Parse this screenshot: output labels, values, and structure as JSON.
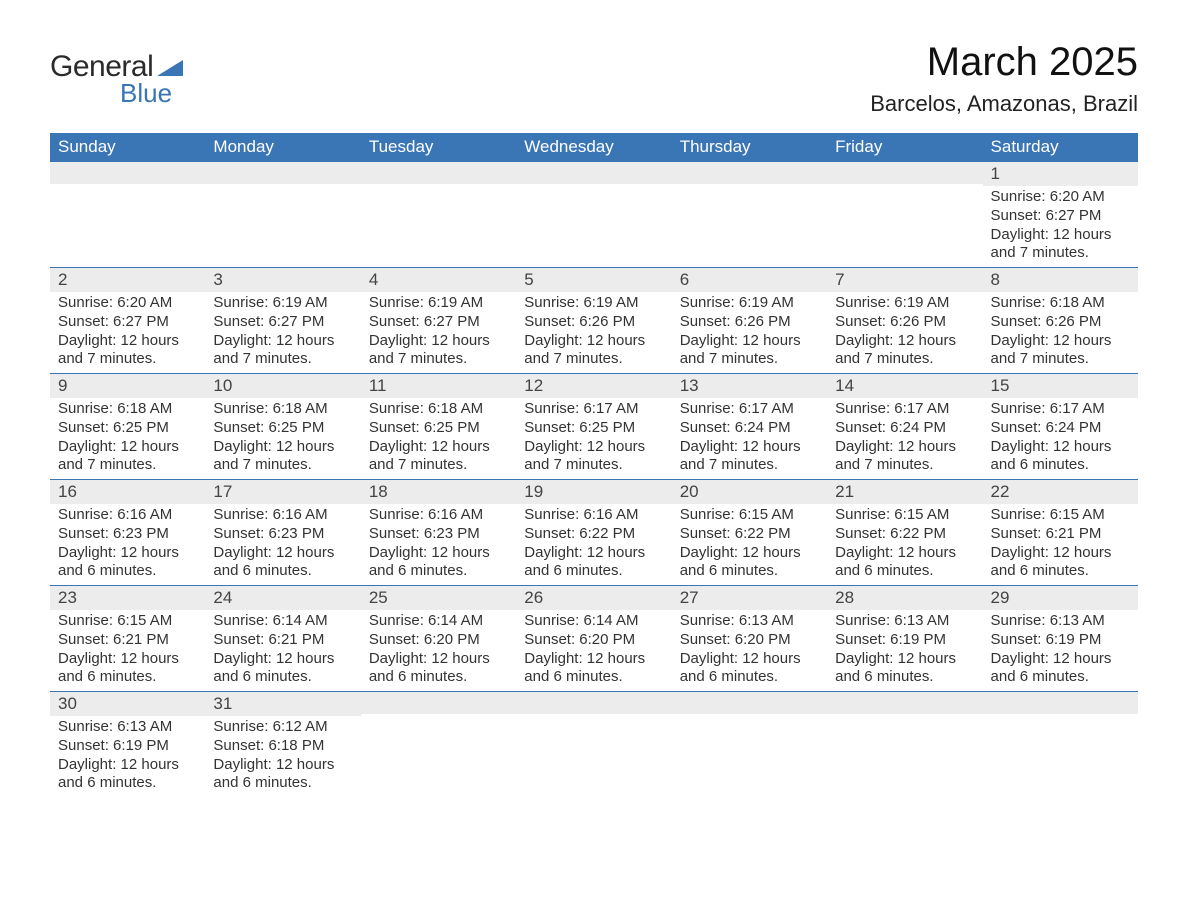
{
  "brand": {
    "word1": "General",
    "word2": "Blue",
    "shape_color": "#3a75b5"
  },
  "header": {
    "title": "March 2025",
    "location": "Barcelos, Amazonas, Brazil"
  },
  "colors": {
    "header_bg": "#3a75b5",
    "header_fg": "#ffffff",
    "row_sep": "#3a75b5",
    "daynum_bg": "#ececec"
  },
  "day_labels": [
    "Sunday",
    "Monday",
    "Tuesday",
    "Wednesday",
    "Thursday",
    "Friday",
    "Saturday"
  ],
  "weeks": [
    [
      {
        "n": "",
        "lines": []
      },
      {
        "n": "",
        "lines": []
      },
      {
        "n": "",
        "lines": []
      },
      {
        "n": "",
        "lines": []
      },
      {
        "n": "",
        "lines": []
      },
      {
        "n": "",
        "lines": []
      },
      {
        "n": "1",
        "lines": [
          "Sunrise: 6:20 AM",
          "Sunset: 6:27 PM",
          "Daylight: 12 hours and 7 minutes."
        ]
      }
    ],
    [
      {
        "n": "2",
        "lines": [
          "Sunrise: 6:20 AM",
          "Sunset: 6:27 PM",
          "Daylight: 12 hours and 7 minutes."
        ]
      },
      {
        "n": "3",
        "lines": [
          "Sunrise: 6:19 AM",
          "Sunset: 6:27 PM",
          "Daylight: 12 hours and 7 minutes."
        ]
      },
      {
        "n": "4",
        "lines": [
          "Sunrise: 6:19 AM",
          "Sunset: 6:27 PM",
          "Daylight: 12 hours and 7 minutes."
        ]
      },
      {
        "n": "5",
        "lines": [
          "Sunrise: 6:19 AM",
          "Sunset: 6:26 PM",
          "Daylight: 12 hours and 7 minutes."
        ]
      },
      {
        "n": "6",
        "lines": [
          "Sunrise: 6:19 AM",
          "Sunset: 6:26 PM",
          "Daylight: 12 hours and 7 minutes."
        ]
      },
      {
        "n": "7",
        "lines": [
          "Sunrise: 6:19 AM",
          "Sunset: 6:26 PM",
          "Daylight: 12 hours and 7 minutes."
        ]
      },
      {
        "n": "8",
        "lines": [
          "Sunrise: 6:18 AM",
          "Sunset: 6:26 PM",
          "Daylight: 12 hours and 7 minutes."
        ]
      }
    ],
    [
      {
        "n": "9",
        "lines": [
          "Sunrise: 6:18 AM",
          "Sunset: 6:25 PM",
          "Daylight: 12 hours and 7 minutes."
        ]
      },
      {
        "n": "10",
        "lines": [
          "Sunrise: 6:18 AM",
          "Sunset: 6:25 PM",
          "Daylight: 12 hours and 7 minutes."
        ]
      },
      {
        "n": "11",
        "lines": [
          "Sunrise: 6:18 AM",
          "Sunset: 6:25 PM",
          "Daylight: 12 hours and 7 minutes."
        ]
      },
      {
        "n": "12",
        "lines": [
          "Sunrise: 6:17 AM",
          "Sunset: 6:25 PM",
          "Daylight: 12 hours and 7 minutes."
        ]
      },
      {
        "n": "13",
        "lines": [
          "Sunrise: 6:17 AM",
          "Sunset: 6:24 PM",
          "Daylight: 12 hours and 7 minutes."
        ]
      },
      {
        "n": "14",
        "lines": [
          "Sunrise: 6:17 AM",
          "Sunset: 6:24 PM",
          "Daylight: 12 hours and 7 minutes."
        ]
      },
      {
        "n": "15",
        "lines": [
          "Sunrise: 6:17 AM",
          "Sunset: 6:24 PM",
          "Daylight: 12 hours and 6 minutes."
        ]
      }
    ],
    [
      {
        "n": "16",
        "lines": [
          "Sunrise: 6:16 AM",
          "Sunset: 6:23 PM",
          "Daylight: 12 hours and 6 minutes."
        ]
      },
      {
        "n": "17",
        "lines": [
          "Sunrise: 6:16 AM",
          "Sunset: 6:23 PM",
          "Daylight: 12 hours and 6 minutes."
        ]
      },
      {
        "n": "18",
        "lines": [
          "Sunrise: 6:16 AM",
          "Sunset: 6:23 PM",
          "Daylight: 12 hours and 6 minutes."
        ]
      },
      {
        "n": "19",
        "lines": [
          "Sunrise: 6:16 AM",
          "Sunset: 6:22 PM",
          "Daylight: 12 hours and 6 minutes."
        ]
      },
      {
        "n": "20",
        "lines": [
          "Sunrise: 6:15 AM",
          "Sunset: 6:22 PM",
          "Daylight: 12 hours and 6 minutes."
        ]
      },
      {
        "n": "21",
        "lines": [
          "Sunrise: 6:15 AM",
          "Sunset: 6:22 PM",
          "Daylight: 12 hours and 6 minutes."
        ]
      },
      {
        "n": "22",
        "lines": [
          "Sunrise: 6:15 AM",
          "Sunset: 6:21 PM",
          "Daylight: 12 hours and 6 minutes."
        ]
      }
    ],
    [
      {
        "n": "23",
        "lines": [
          "Sunrise: 6:15 AM",
          "Sunset: 6:21 PM",
          "Daylight: 12 hours and 6 minutes."
        ]
      },
      {
        "n": "24",
        "lines": [
          "Sunrise: 6:14 AM",
          "Sunset: 6:21 PM",
          "Daylight: 12 hours and 6 minutes."
        ]
      },
      {
        "n": "25",
        "lines": [
          "Sunrise: 6:14 AM",
          "Sunset: 6:20 PM",
          "Daylight: 12 hours and 6 minutes."
        ]
      },
      {
        "n": "26",
        "lines": [
          "Sunrise: 6:14 AM",
          "Sunset: 6:20 PM",
          "Daylight: 12 hours and 6 minutes."
        ]
      },
      {
        "n": "27",
        "lines": [
          "Sunrise: 6:13 AM",
          "Sunset: 6:20 PM",
          "Daylight: 12 hours and 6 minutes."
        ]
      },
      {
        "n": "28",
        "lines": [
          "Sunrise: 6:13 AM",
          "Sunset: 6:19 PM",
          "Daylight: 12 hours and 6 minutes."
        ]
      },
      {
        "n": "29",
        "lines": [
          "Sunrise: 6:13 AM",
          "Sunset: 6:19 PM",
          "Daylight: 12 hours and 6 minutes."
        ]
      }
    ],
    [
      {
        "n": "30",
        "lines": [
          "Sunrise: 6:13 AM",
          "Sunset: 6:19 PM",
          "Daylight: 12 hours and 6 minutes."
        ]
      },
      {
        "n": "31",
        "lines": [
          "Sunrise: 6:12 AM",
          "Sunset: 6:18 PM",
          "Daylight: 12 hours and 6 minutes."
        ]
      },
      {
        "n": "",
        "lines": []
      },
      {
        "n": "",
        "lines": []
      },
      {
        "n": "",
        "lines": []
      },
      {
        "n": "",
        "lines": []
      },
      {
        "n": "",
        "lines": []
      }
    ]
  ]
}
